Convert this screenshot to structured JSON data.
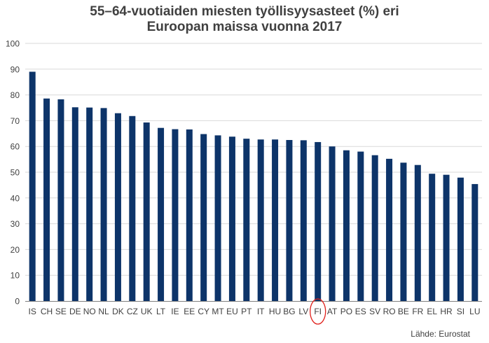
{
  "title_lines": [
    "55–64-vuotiaiden miesten työllisyysasteet (%) eri",
    "Euroopan maissa vuonna 2017"
  ],
  "source": "Lähde: Eurostat",
  "colors": {
    "bar": "#0d3469",
    "grid": "#d9d9d9",
    "axis": "#7f7f7f",
    "text": "#404040",
    "highlight_circle": "#e0201b"
  },
  "chart_data": {
    "type": "bar",
    "title": "55–64-vuotiaiden miesten työllisyysasteet (%) eri Euroopan maissa vuonna 2017",
    "xlabel": "",
    "ylabel": "",
    "ylim": [
      0,
      100
    ],
    "yticks": [
      0,
      10,
      20,
      30,
      40,
      50,
      60,
      70,
      80,
      90,
      100
    ],
    "grid": true,
    "legend": "none",
    "highlighted_category": "FI",
    "categories": [
      "IS",
      "CH",
      "SE",
      "DE",
      "NO",
      "NL",
      "DK",
      "CZ",
      "UK",
      "LT",
      "IE",
      "EE",
      "CY",
      "MT",
      "EU",
      "PT",
      "IT",
      "HU",
      "BG",
      "LV",
      "FI",
      "AT",
      "PO",
      "ES",
      "SV",
      "RO",
      "BE",
      "FR",
      "EL",
      "HR",
      "SI",
      "LU"
    ],
    "values": [
      89.0,
      78.6,
      78.3,
      75.2,
      75.1,
      74.9,
      72.9,
      71.8,
      69.3,
      67.2,
      66.7,
      66.6,
      64.8,
      64.3,
      63.8,
      63.0,
      62.7,
      62.7,
      62.5,
      62.4,
      61.7,
      60.0,
      58.5,
      58.0,
      56.6,
      55.2,
      53.7,
      52.8,
      49.4,
      49.0,
      47.9,
      45.4
    ]
  }
}
